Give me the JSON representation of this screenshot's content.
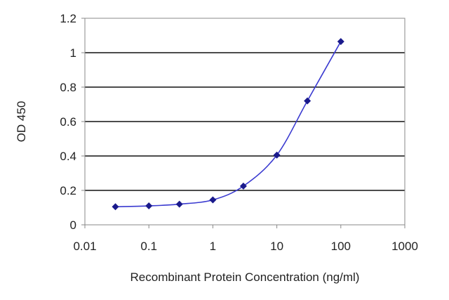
{
  "chart_data": {
    "type": "line",
    "xlabel": "Recombinant Protein Concentration (ng/ml)",
    "ylabel": "OD 450",
    "x_scale": "log",
    "xlim": [
      0.01,
      1000
    ],
    "ylim": [
      0,
      1.2
    ],
    "x_ticks": [
      "0.01",
      "0.1",
      "1",
      "10",
      "100",
      "1000"
    ],
    "y_ticks": [
      "0",
      "0.2",
      "0.4",
      "0.6",
      "0.8",
      "1",
      "1.2"
    ],
    "grid": "horizontal",
    "series": [
      {
        "x": [
          0.03,
          0.1,
          0.3,
          1,
          3,
          10,
          30,
          100
        ],
        "y": [
          0.105,
          0.11,
          0.12,
          0.145,
          0.225,
          0.405,
          0.72,
          1.065
        ]
      }
    ],
    "colors": {
      "line": "#3a3ad0",
      "marker": "#1a1a8c",
      "grid": "#111111",
      "frame": "#888888"
    }
  }
}
